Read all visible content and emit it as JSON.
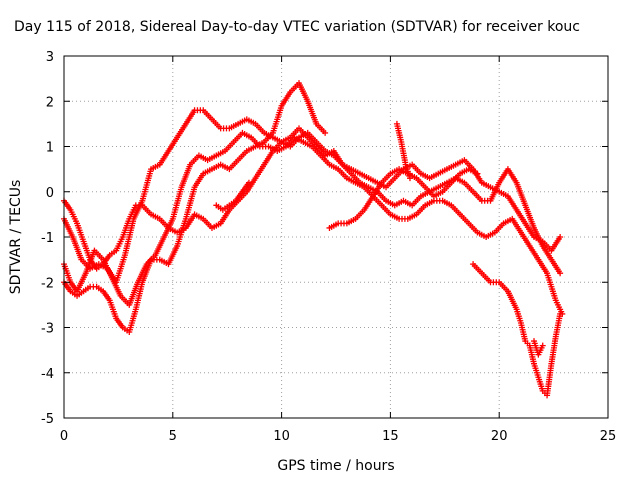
{
  "chart_data": {
    "type": "scatter",
    "title": "Day 115 of 2018, Sidereal Day-to-day VTEC variation (SDTVAR) for receiver kouc",
    "xlabel": "GPS time / hours",
    "ylabel": "SDTVAR / TECUs",
    "xlim": [
      0,
      25
    ],
    "ylim": [
      -5,
      3
    ],
    "x_ticks": [
      0,
      5,
      10,
      15,
      20,
      25
    ],
    "y_ticks": [
      -5,
      -4,
      -3,
      -2,
      -1,
      0,
      1,
      2,
      3
    ],
    "grid": true,
    "marker": "+",
    "color": "#ff0000",
    "series": [
      {
        "x": [
          0.0,
          0.3,
          0.6,
          1.0,
          1.4,
          1.8,
          2.2,
          2.6,
          3.0,
          3.4,
          3.8,
          4.2,
          4.6,
          5.0,
          5.4,
          5.8,
          6.2,
          6.6,
          7.0,
          7.4,
          7.8,
          8.2,
          8.6,
          9.0,
          9.4,
          9.8,
          10.2,
          10.6,
          11.0,
          11.4,
          11.8,
          12.2,
          12.6,
          13.0,
          13.4,
          13.8,
          14.2,
          14.6,
          15.0,
          15.4,
          15.8,
          16.2,
          16.6,
          17.0,
          17.4,
          17.8,
          18.2,
          18.6,
          19.0,
          19.4,
          19.8,
          20.2,
          20.6,
          21.0,
          21.4,
          21.8,
          22.2,
          22.6,
          22.9
        ],
        "y": [
          -1.6,
          -2.0,
          -2.2,
          -1.8,
          -1.3,
          -1.5,
          -1.9,
          -2.3,
          -2.5,
          -2.0,
          -1.6,
          -1.4,
          -1.0,
          -0.6,
          0.1,
          0.6,
          0.8,
          0.7,
          0.8,
          0.9,
          1.1,
          1.3,
          1.2,
          1.0,
          1.0,
          0.9,
          1.0,
          1.2,
          1.1,
          1.0,
          0.8,
          0.6,
          0.5,
          0.3,
          0.2,
          0.1,
          -0.1,
          -0.3,
          -0.5,
          -0.6,
          -0.6,
          -0.5,
          -0.3,
          -0.2,
          -0.2,
          -0.3,
          -0.5,
          -0.7,
          -0.9,
          -1.0,
          -0.9,
          -0.7,
          -0.6,
          -0.9,
          -1.2,
          -1.5,
          -1.8,
          -2.4,
          -2.7
        ]
      },
      {
        "x": [
          0.0,
          0.4,
          0.8,
          1.2,
          1.6,
          2.0,
          2.4,
          2.8,
          3.2,
          3.6,
          4.0,
          4.4,
          4.8,
          5.2,
          5.6,
          6.0,
          6.4,
          6.8,
          7.2,
          7.6,
          8.0,
          8.4,
          8.8,
          9.2,
          9.6,
          10.0,
          10.4,
          10.8,
          11.2,
          11.6,
          12.0,
          12.4,
          12.8,
          13.2,
          13.6,
          14.0,
          14.4,
          14.8,
          15.2,
          15.6,
          16.0,
          16.4,
          16.8,
          17.2,
          17.6,
          18.0,
          18.4,
          18.8,
          19.2,
          19.6,
          20.0,
          20.4,
          20.8,
          21.2,
          21.6,
          22.0,
          22.4,
          22.8
        ],
        "y": [
          -0.6,
          -1.0,
          -1.5,
          -1.7,
          -1.6,
          -1.7,
          -2.0,
          -1.4,
          -0.6,
          -0.2,
          0.5,
          0.6,
          0.9,
          1.2,
          1.5,
          1.8,
          1.8,
          1.6,
          1.4,
          1.4,
          1.5,
          1.6,
          1.5,
          1.3,
          1.2,
          1.1,
          1.0,
          1.2,
          1.3,
          1.1,
          0.9,
          0.8,
          0.6,
          0.5,
          0.4,
          0.3,
          0.2,
          0.1,
          0.3,
          0.5,
          0.6,
          0.4,
          0.3,
          0.4,
          0.5,
          0.6,
          0.7,
          0.5,
          0.2,
          0.1,
          0.0,
          -0.1,
          -0.4,
          -0.7,
          -1.0,
          -1.1,
          -1.3,
          -1.0
        ]
      },
      {
        "x": [
          0.0,
          0.3,
          0.6,
          0.9,
          1.2,
          1.5,
          1.8,
          2.1,
          2.4,
          2.7,
          3.0,
          3.3,
          3.6,
          4.0,
          4.4,
          4.8,
          5.2,
          5.6,
          6.0,
          6.4,
          6.8,
          7.2,
          7.6,
          8.0,
          8.4,
          8.8,
          9.2,
          9.6,
          10.0,
          10.4,
          10.8,
          11.2,
          11.6,
          12.0,
          12.4,
          12.8,
          13.2,
          13.6,
          14.0,
          14.4,
          14.8,
          15.2,
          15.6,
          16.0,
          16.4,
          16.8,
          17.2,
          17.6,
          18.0,
          18.4,
          18.8,
          19.2,
          19.6,
          20.0,
          20.4,
          20.8,
          21.2,
          21.6,
          22.0,
          22.4,
          22.8
        ],
        "y": [
          -0.2,
          -0.4,
          -0.7,
          -1.1,
          -1.5,
          -1.7,
          -1.6,
          -1.4,
          -1.3,
          -1.0,
          -0.6,
          -0.3,
          -0.3,
          -0.5,
          -0.6,
          -0.8,
          -0.9,
          -0.8,
          -0.5,
          -0.6,
          -0.8,
          -0.7,
          -0.4,
          -0.2,
          0.0,
          0.3,
          0.6,
          0.9,
          1.1,
          1.2,
          1.4,
          1.2,
          1.0,
          0.8,
          0.9,
          0.6,
          0.4,
          0.2,
          0.1,
          0.0,
          -0.2,
          -0.3,
          -0.2,
          -0.3,
          -0.1,
          0.0,
          0.1,
          0.2,
          0.3,
          0.2,
          0.0,
          -0.2,
          -0.2,
          0.2,
          0.5,
          0.2,
          -0.3,
          -0.8,
          -1.2,
          -1.5,
          -1.8
        ]
      },
      {
        "x": [
          0.0,
          0.3,
          0.6,
          0.9,
          1.2,
          1.5,
          1.8,
          2.1,
          2.4,
          2.7,
          3.0,
          3.3,
          3.6,
          4.0,
          4.4,
          4.8,
          5.2,
          5.6,
          6.0,
          6.4,
          6.8,
          7.2,
          7.6,
          8.0,
          8.4,
          8.8,
          9.2,
          9.6,
          10.0,
          10.4,
          10.8,
          11.2,
          11.6,
          12.0
        ],
        "y": [
          -2.0,
          -2.2,
          -2.3,
          -2.2,
          -2.1,
          -2.1,
          -2.2,
          -2.4,
          -2.8,
          -3.0,
          -3.1,
          -2.6,
          -2.0,
          -1.5,
          -1.5,
          -1.6,
          -1.2,
          -0.6,
          0.1,
          0.4,
          0.5,
          0.6,
          0.5,
          0.7,
          0.9,
          1.0,
          1.1,
          1.3,
          1.9,
          2.2,
          2.4,
          2.0,
          1.5,
          1.3
        ]
      },
      {
        "x": [
          12.2,
          12.6,
          13.0,
          13.4,
          13.8,
          14.2,
          14.6,
          15.0,
          15.4,
          15.8,
          16.2,
          16.6,
          17.0,
          17.4,
          17.8,
          18.2,
          18.6,
          19.0
        ],
        "y": [
          -0.8,
          -0.7,
          -0.7,
          -0.6,
          -0.4,
          -0.1,
          0.2,
          0.4,
          0.5,
          0.4,
          0.3,
          0.1,
          -0.1,
          0.0,
          0.2,
          0.4,
          0.5,
          0.4
        ]
      },
      {
        "x": [
          18.8,
          19.2,
          19.6,
          20.0,
          20.4,
          20.8,
          21.0,
          21.2,
          21.4,
          21.6,
          21.8,
          22.0,
          22.2,
          22.4,
          22.6,
          22.8
        ],
        "y": [
          -1.6,
          -1.8,
          -2.0,
          -2.0,
          -2.2,
          -2.6,
          -2.9,
          -3.3,
          -3.4,
          -3.8,
          -4.1,
          -4.4,
          -4.5,
          -3.8,
          -3.2,
          -2.7
        ]
      },
      {
        "x": [
          7.0,
          7.3,
          7.6,
          7.9,
          8.2,
          8.5
        ],
        "y": [
          -0.3,
          -0.4,
          -0.3,
          -0.2,
          0.0,
          0.2
        ]
      },
      {
        "x": [
          15.3,
          15.5,
          15.7,
          15.9
        ],
        "y": [
          1.5,
          1.1,
          0.6,
          0.3
        ]
      },
      {
        "x": [
          21.6,
          21.8,
          22.0
        ],
        "y": [
          -3.3,
          -3.6,
          -3.4
        ]
      }
    ]
  }
}
